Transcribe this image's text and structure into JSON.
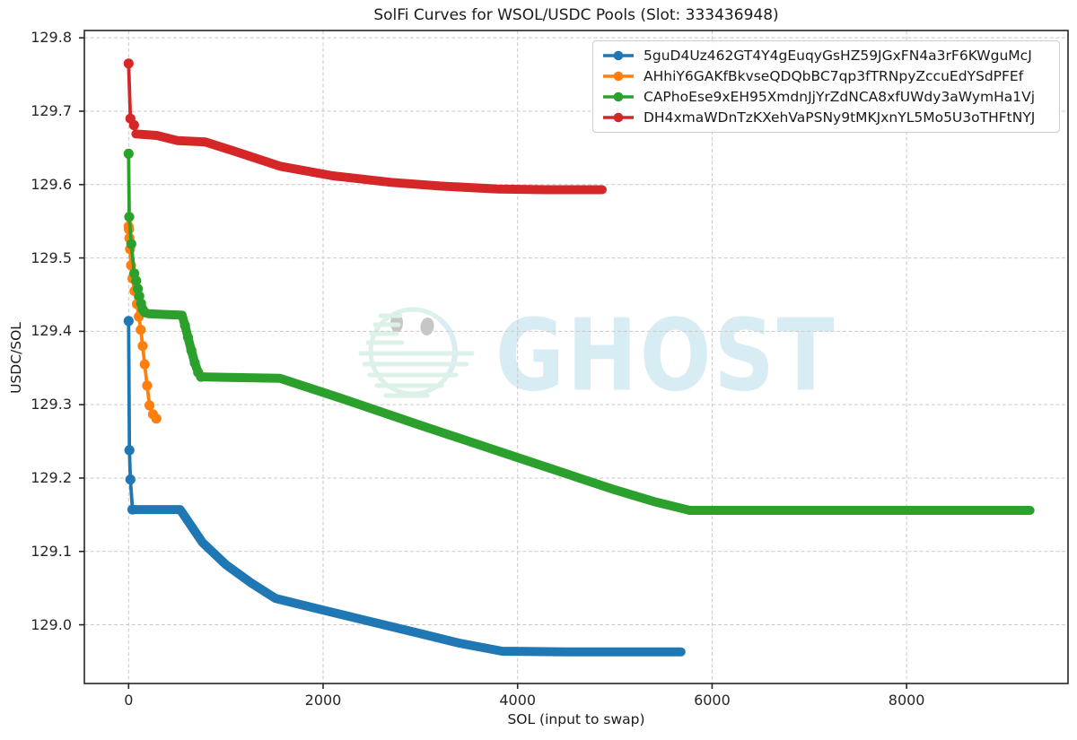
{
  "watermark": {
    "text": "GHOST"
  },
  "chart_data": {
    "type": "line",
    "title": "SolFi Curves for WSOL/USDC Pools (Slot: 333436948)",
    "xlabel": "SOL (input to swap)",
    "ylabel": "USDC/SOL",
    "grid": true,
    "legend_position": "upper right",
    "xlim": [
      -455,
      9660
    ],
    "ylim": [
      128.92,
      129.81
    ],
    "x_ticks": [
      0,
      2000,
      4000,
      6000,
      8000
    ],
    "x_tick_labels": [
      "0",
      "2000",
      "4000",
      "6000",
      "8000"
    ],
    "y_ticks": [
      129.0,
      129.1,
      129.2,
      129.3,
      129.4,
      129.5,
      129.6,
      129.7,
      129.8
    ],
    "y_tick_labels": [
      "129.0",
      "129.1",
      "129.2",
      "129.3",
      "129.4",
      "129.5",
      "129.6",
      "129.7",
      "129.8"
    ],
    "series": [
      {
        "name": "5guD4Uz462GT4Y4gEuqyGsHZ59JGxFN4a3rF6KWguMcJ",
        "color": "#1f77b4",
        "thick_from": 3,
        "marker_idx": [
          0,
          1,
          2,
          3
        ],
        "points": [
          [
            0,
            129.414
          ],
          [
            8,
            129.238
          ],
          [
            18,
            129.198
          ],
          [
            40,
            129.157
          ],
          [
            300,
            129.157
          ],
          [
            530,
            129.157
          ],
          [
            760,
            129.112
          ],
          [
            1000,
            129.082
          ],
          [
            1250,
            129.058
          ],
          [
            1510,
            129.036
          ],
          [
            2000,
            129.02
          ],
          [
            2500,
            129.004
          ],
          [
            3000,
            128.988
          ],
          [
            3400,
            128.975
          ],
          [
            3840,
            128.964
          ],
          [
            4500,
            128.963
          ],
          [
            5680,
            128.963
          ]
        ]
      },
      {
        "name": "AHhiY6GAKfBkvseQDQbBC7qp3fTRNpyZccuEdYSdPFEf",
        "color": "#ff7f0e",
        "thick_from": null,
        "marker_idx": "all",
        "points": [
          [
            0,
            129.543
          ],
          [
            4,
            129.539
          ],
          [
            8,
            129.527
          ],
          [
            15,
            129.512
          ],
          [
            25,
            129.49
          ],
          [
            40,
            129.472
          ],
          [
            60,
            129.455
          ],
          [
            85,
            129.437
          ],
          [
            105,
            129.42
          ],
          [
            125,
            129.402
          ],
          [
            145,
            129.38
          ],
          [
            165,
            129.355
          ],
          [
            190,
            129.326
          ],
          [
            215,
            129.299
          ],
          [
            250,
            129.287
          ],
          [
            285,
            129.281
          ]
        ]
      },
      {
        "name": "CAPhoEse9xEH95XmdnJjYrZdNCA8xfUWdy3aWymHa1Vj",
        "color": "#2ca02c",
        "thick_from": 9,
        "marker_idx": [
          0,
          1,
          2,
          3,
          4,
          5,
          6,
          7,
          8,
          9,
          13,
          14,
          15,
          16,
          17,
          18
        ],
        "points": [
          [
            0,
            129.642
          ],
          [
            6,
            129.556
          ],
          [
            28,
            129.519
          ],
          [
            58,
            129.479
          ],
          [
            78,
            129.469
          ],
          [
            95,
            129.458
          ],
          [
            110,
            129.448
          ],
          [
            128,
            129.438
          ],
          [
            145,
            129.43
          ],
          [
            165,
            129.426
          ],
          [
            200,
            129.424
          ],
          [
            380,
            129.423
          ],
          [
            550,
            129.422
          ],
          [
            580,
            129.408
          ],
          [
            610,
            129.392
          ],
          [
            645,
            129.374
          ],
          [
            680,
            129.357
          ],
          [
            715,
            129.344
          ],
          [
            745,
            129.338
          ],
          [
            1100,
            129.337
          ],
          [
            1556,
            129.336
          ],
          [
            2200,
            129.308
          ],
          [
            3000,
            129.272
          ],
          [
            4000,
            129.228
          ],
          [
            5000,
            129.184
          ],
          [
            5400,
            129.168
          ],
          [
            5770,
            129.156
          ],
          [
            7000,
            129.156
          ],
          [
            8200,
            129.156
          ],
          [
            9270,
            129.156
          ]
        ]
      },
      {
        "name": "DH4xmaWDnTzKXehVaPSNy9tMKJxnYL5Mo5U3oTHFtNYJ",
        "color": "#d62728",
        "thick_from": 3,
        "marker_idx": [
          0,
          1,
          2
        ],
        "points": [
          [
            0,
            129.765
          ],
          [
            18,
            129.69
          ],
          [
            55,
            129.681
          ],
          [
            75,
            129.669
          ],
          [
            290,
            129.667
          ],
          [
            500,
            129.66
          ],
          [
            790,
            129.658
          ],
          [
            1100,
            129.645
          ],
          [
            1556,
            129.625
          ],
          [
            2100,
            129.612
          ],
          [
            2700,
            129.603
          ],
          [
            3200,
            129.598
          ],
          [
            3800,
            129.594
          ],
          [
            4300,
            129.593
          ],
          [
            4870,
            129.593
          ]
        ]
      }
    ]
  }
}
